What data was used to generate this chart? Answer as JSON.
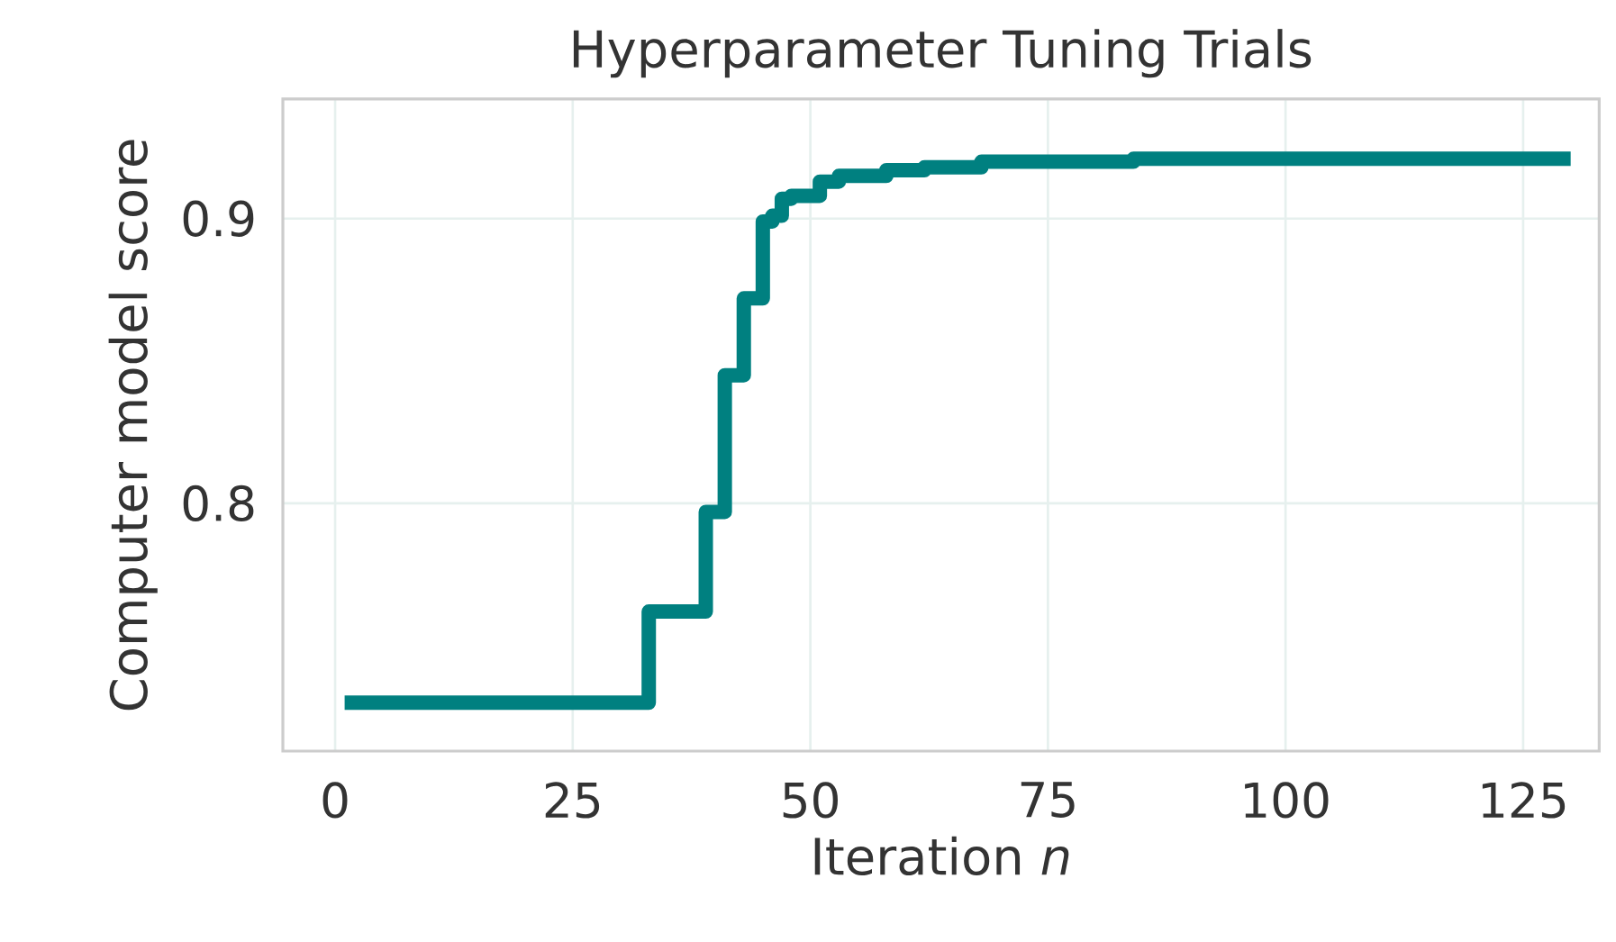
{
  "chart_data": {
    "type": "step",
    "title": "Hyperparameter Tuning Trials",
    "xlabel": "Iteration *n*",
    "ylabel": "Computer model score",
    "x": [
      1,
      33,
      39,
      41,
      43,
      45,
      46,
      47,
      48,
      51,
      53,
      58,
      62,
      68,
      84,
      130
    ],
    "series": [
      {
        "color": "#008080",
        "values": [
          0.73,
          0.762,
          0.797,
          0.845,
          0.872,
          0.899,
          0.901,
          0.907,
          0.908,
          0.913,
          0.915,
          0.917,
          0.918,
          0.92,
          0.921,
          0.921
        ]
      }
    ],
    "xlim": [
      -5.5,
      133
    ],
    "ylim": [
      0.713,
      0.942
    ],
    "xticks": [
      0,
      25,
      50,
      75,
      100,
      125
    ],
    "yticks": [
      0.8,
      0.9
    ],
    "grid": true,
    "marker": "none",
    "line_style": "solid"
  }
}
